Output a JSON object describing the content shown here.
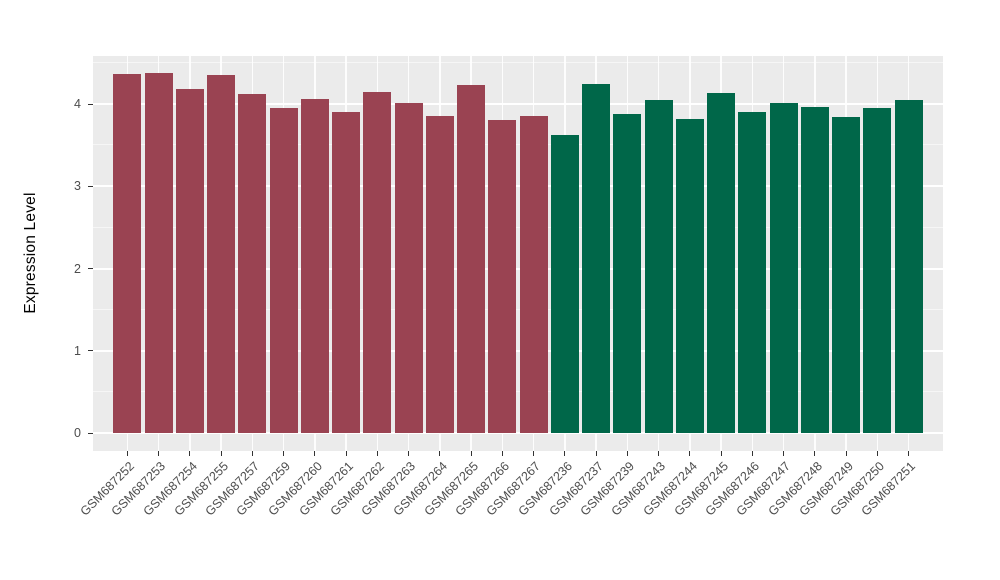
{
  "figure": {
    "background": "#FFFFFF",
    "panel_background": "#EBEBEB",
    "gridline_color": "#FFFFFF",
    "tick_color": "#333333",
    "axis_label_color": "#4D4D4D",
    "axis_title_color": "#000000"
  },
  "chart_data": {
    "type": "bar",
    "title": "",
    "xlabel": "",
    "ylabel": "Expression Level",
    "ylim": [
      0,
      4.6
    ],
    "yticks": [
      0,
      1,
      2,
      3,
      4
    ],
    "minor_yticks": [
      0.5,
      1.5,
      2.5,
      3.5,
      4.5
    ],
    "grid": "on",
    "legend": "none",
    "categories": [
      "GSM687252",
      "GSM687253",
      "GSM687254",
      "GSM687255",
      "GSM687257",
      "GSM687259",
      "GSM687260",
      "GSM687261",
      "GSM687262",
      "GSM687263",
      "GSM687264",
      "GSM687265",
      "GSM687266",
      "GSM687267",
      "GSM687236",
      "GSM687237",
      "GSM687239",
      "GSM687243",
      "GSM687244",
      "GSM687245",
      "GSM687246",
      "GSM687247",
      "GSM687248",
      "GSM687249",
      "GSM687250",
      "GSM687251"
    ],
    "values": [
      4.37,
      4.38,
      4.19,
      4.36,
      4.12,
      3.95,
      4.06,
      3.91,
      4.15,
      4.02,
      3.86,
      4.23,
      3.81,
      3.86,
      3.62,
      4.25,
      3.88,
      4.05,
      3.82,
      4.14,
      3.91,
      4.01,
      3.97,
      3.85,
      3.96,
      4.05
    ],
    "groups": [
      "group1",
      "group1",
      "group1",
      "group1",
      "group1",
      "group1",
      "group1",
      "group1",
      "group1",
      "group1",
      "group1",
      "group1",
      "group1",
      "group1",
      "group2",
      "group2",
      "group2",
      "group2",
      "group2",
      "group2",
      "group2",
      "group2",
      "group2",
      "group2",
      "group2",
      "group2"
    ],
    "group_colors": {
      "group1": "#9A4352",
      "group2": "#006749"
    }
  }
}
